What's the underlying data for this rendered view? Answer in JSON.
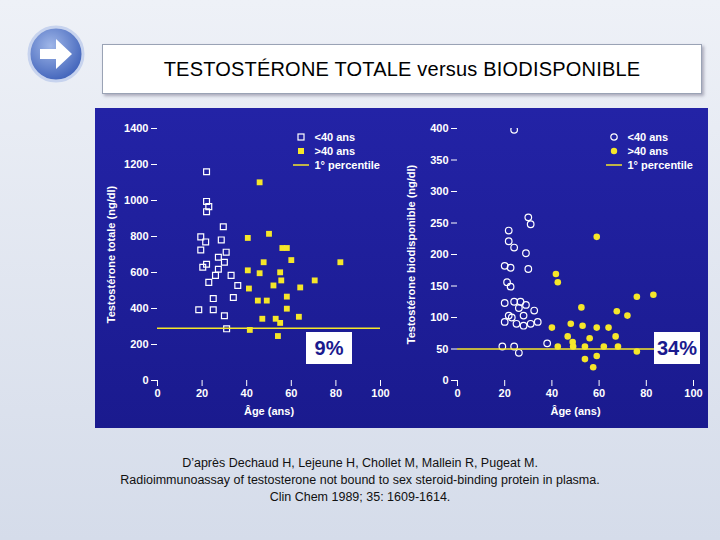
{
  "title": "TESTOSTÉRONE TOTALE versus BIODISPONIBLE",
  "caption": [
    "D’après Dechaud H, Lejeune H, Chollet M, Mallein R, Pugeat M.",
    "Radioimmunoassay of testosterone not bound to sex steroid-binding protein in plasma.",
    "Clin Chem 1989; 35: 1609-1614."
  ],
  "chart_data": [
    {
      "type": "scatter",
      "x_label": "Âge (ans)",
      "y_label": "Testostérone totale (ng/dl)",
      "xlim": [
        0,
        100
      ],
      "xticks": [
        0,
        20,
        40,
        60,
        80,
        100
      ],
      "ylim": [
        0,
        1400
      ],
      "yticks": [
        0,
        200,
        400,
        600,
        800,
        1000,
        1200,
        1400
      ],
      "legend": "top-right",
      "annotation": "9%",
      "series": [
        {
          "name": "<40 ans",
          "marker": "square-open",
          "color": "#ffffff",
          "x": [
            22,
            22,
            23,
            22,
            29.5,
            19.4,
            21.6,
            28.6,
            19.4,
            27.3,
            30.8,
            22,
            20.3,
            27.3,
            30,
            26,
            33,
            23,
            36,
            25,
            34,
            18.5,
            25,
            30,
            31
          ],
          "values": [
            1160,
            995,
            966,
            938,
            854,
            798,
            770,
            781,
            725,
            685,
            713,
            646,
            629,
            618,
            657,
            584,
            584,
            545,
            528,
            455,
            461,
            393,
            393,
            360,
            287
          ]
        },
        {
          "name": ">40 ans",
          "marker": "square",
          "color": "#f5e62a",
          "x": [
            45.8,
            40.5,
            50,
            56,
            58,
            47.6,
            60,
            55,
            40.5,
            45.8,
            41,
            52,
            55.5,
            58,
            45,
            49,
            64,
            70.5,
            58,
            53,
            41.4,
            55,
            63.4,
            82,
            54,
            47
          ],
          "values": [
            1101,
            792,
            815,
            736,
            736,
            657,
            669,
            601,
            612,
            596,
            511,
            528,
            556,
            466,
            444,
            444,
            517,
            556,
            399,
            343,
            281,
            320,
            354,
            657,
            247,
            343
          ]
        },
        {
          "name": "1° percentile",
          "type": "rule",
          "color": "#f5e62a",
          "values": [
            290
          ]
        }
      ]
    },
    {
      "type": "scatter",
      "x_label": "Âge (ans)",
      "y_label": "Testostérone biodisponible (ng/dl)",
      "xlim": [
        0,
        100
      ],
      "xticks": [
        0,
        20,
        40,
        60,
        80,
        100
      ],
      "ylim": [
        0,
        400
      ],
      "yticks": [
        0,
        50,
        100,
        150,
        200,
        250,
        300,
        350,
        400
      ],
      "legend": "top-right",
      "annotation": "34%",
      "series": [
        {
          "name": "<40 ans",
          "marker": "circle-open",
          "color": "#ffffff",
          "x": [
            24,
            30,
            31,
            21.7,
            21.7,
            24,
            29,
            20,
            22.5,
            30,
            21,
            22.5,
            20,
            24,
            26.7,
            29,
            32.5,
            28,
            23,
            20,
            25,
            31,
            34,
            21.7,
            26,
            28,
            19,
            24,
            26,
            38
          ],
          "values": [
            398,
            259,
            248,
            238,
            221,
            211,
            202,
            182,
            179,
            177,
            156,
            149,
            123,
            125,
            125,
            120,
            111,
            103,
            100,
            93,
            90,
            90,
            93,
            103,
            115,
            87,
            54,
            54,
            44,
            59
          ]
        },
        {
          "name": ">40 ans",
          "marker": "circle",
          "color": "#f5e62a",
          "x": [
            59,
            41.7,
            42.5,
            76,
            52.5,
            83,
            67.5,
            40,
            48,
            53,
            59,
            64,
            67,
            46.7,
            48.8,
            42.5,
            54,
            56,
            62,
            76,
            59,
            54,
            57.5,
            49,
            72,
            68
          ],
          "values": [
            228,
            169,
            156,
            133,
            116,
            136,
            110,
            84,
            90,
            87,
            84,
            84,
            70,
            70,
            61,
            54,
            54,
            67,
            54,
            46,
            39,
            34,
            21,
            54,
            103,
            54
          ]
        },
        {
          "name": "1° percentile",
          "type": "rule",
          "color": "#f5e62a",
          "values": [
            50
          ]
        }
      ]
    }
  ]
}
